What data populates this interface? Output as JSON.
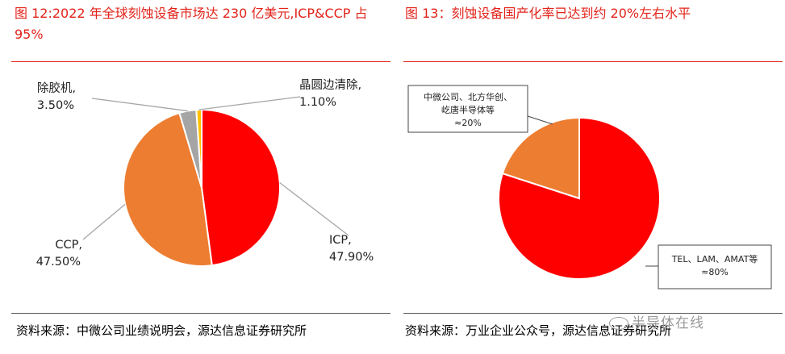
{
  "left": {
    "title": "图 12:2022 年全球刻蚀设备市场达 230 亿美元,ICP&CCP 占 95%",
    "source": "资料来源：中微公司业绩说明会，源达信息证券研究所"
  },
  "right": {
    "title": "图 13：刻蚀设备国产化率已达到约 20%左右水平",
    "source": "资料来源：万业企业公众号，源达信息证券研究所"
  },
  "watermark": "半导体在线",
  "colors": {
    "title_red": "#e2231a",
    "icp": "#ff0000",
    "ccp": "#ed7d31",
    "glue_removal": "#a5a5a5",
    "edge_clean": "#ffc000"
  },
  "chart_data": [
    {
      "type": "pie",
      "title": "",
      "start_angle_deg": 0,
      "direction": "clockwise",
      "slices": [
        {
          "name": "ICP",
          "value": 47.9,
          "label_name": "ICP,",
          "label_value": "47.90%",
          "color": "#ff0000"
        },
        {
          "name": "CCP",
          "value": 47.5,
          "label_name": "CCP,",
          "label_value": "47.50%",
          "color": "#ed7d31"
        },
        {
          "name": "除胶机",
          "value": 3.5,
          "label_name": "除胶机,",
          "label_value": "3.50%",
          "color": "#a5a5a5"
        },
        {
          "name": "晶圆边清除",
          "value": 1.1,
          "label_name": "晶圆边清除,",
          "label_value": "1.10%",
          "color": "#ffc000"
        }
      ]
    },
    {
      "type": "pie",
      "title": "",
      "start_angle_deg": 0,
      "direction": "clockwise",
      "slices": [
        {
          "name": "TEL、LAM、AMAT等",
          "value": 80,
          "label_lines": [
            "TEL、LAM、AMAT等",
            "≈80%"
          ],
          "color": "#ff0000"
        },
        {
          "name": "中微公司、北方华创、屹唐半导体等",
          "value": 20,
          "label_lines": [
            "中微公司、北方华创、",
            "屹唐半导体等",
            "≈20%"
          ],
          "color": "#ed7d31"
        }
      ]
    }
  ]
}
